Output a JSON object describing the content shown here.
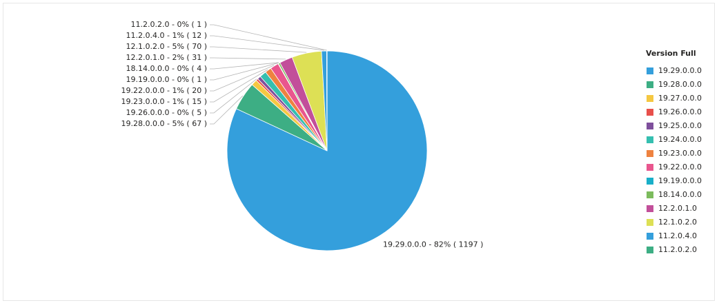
{
  "chart_data": {
    "type": "pie",
    "legend_title": "Version Full",
    "legend": "right",
    "categories": [
      "19.29.0.0.0",
      "19.28.0.0.0",
      "19.27.0.0.0",
      "19.26.0.0.0",
      "19.25.0.0.0",
      "19.24.0.0.0",
      "19.23.0.0.0",
      "19.22.0.0.0",
      "19.19.0.0.0",
      "18.14.0.0.0",
      "12.2.0.1.0",
      "12.1.0.2.0",
      "11.2.0.4.0",
      "11.2.0.2.0"
    ],
    "values": [
      1197,
      67,
      14,
      5,
      8,
      16,
      15,
      20,
      1,
      4,
      31,
      70,
      12,
      1
    ],
    "value_labels": [
      "19.29.0.0.0 - 82% ( 1197 )",
      "19.28.0.0.0 - 5% ( 67 )",
      null,
      "19.26.0.0.0 - 0% ( 5 )",
      null,
      null,
      "19.23.0.0.0 - 1% ( 15 )",
      "19.22.0.0.0 - 1% ( 20 )",
      "19.19.0.0.0 - 0% ( 1 )",
      "18.14.0.0.0 - 0% ( 4 )",
      "12.2.0.1.0 - 2% ( 31 )",
      "12.1.0.2.0 - 5% ( 70 )",
      "11.2.0.4.0 - 1% ( 12 )",
      "11.2.0.2.0 - 0% ( 1 )"
    ],
    "colors": [
      "#349fdc",
      "#3dae84",
      "#f5c842",
      "#e8504b",
      "#7e4f9c",
      "#35bfb0",
      "#ee8240",
      "#e9568e",
      "#19afc9",
      "#7cbb5d",
      "#c24f9a",
      "#dde055",
      "#349fdc",
      "#3dae84"
    ]
  }
}
